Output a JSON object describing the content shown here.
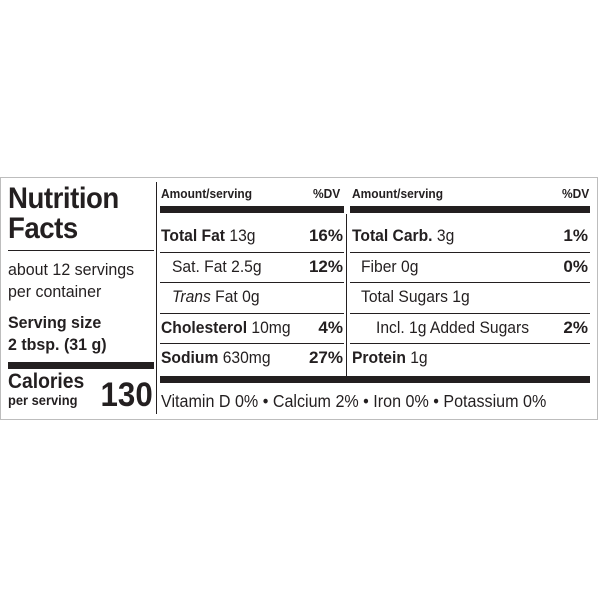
{
  "title": {
    "line1": "Nutrition",
    "line2": "Facts"
  },
  "servings": {
    "line1": "about 12 servings",
    "line2": "per container"
  },
  "serving_size": {
    "label": "Serving size",
    "value": "2 tbsp. (31 g)"
  },
  "calories": {
    "label": "Calories",
    "sublabel": "per serving",
    "value": "130"
  },
  "left_table": {
    "header_amount": "Amount/serving",
    "header_dv": "%DV",
    "rows": [
      {
        "name": "Total Fat",
        "amount": "13g",
        "dv": "16%"
      },
      {
        "name": "Sat. Fat",
        "amount": "2.5g",
        "dv": "12%"
      },
      {
        "name_italic": "Trans",
        "name": "Fat",
        "amount": "0g",
        "dv": ""
      },
      {
        "name": "Cholesterol",
        "amount": "10mg",
        "dv": "4%"
      },
      {
        "name": "Sodium",
        "amount": "630mg",
        "dv": "27%"
      }
    ]
  },
  "right_table": {
    "header_amount": "Amount/serving",
    "header_dv": "%DV",
    "rows": [
      {
        "name": "Total Carb.",
        "amount": "3g",
        "dv": "1%"
      },
      {
        "name": "Fiber",
        "amount": "0g",
        "dv": "0%"
      },
      {
        "name": "Total Sugars",
        "amount": "1g",
        "dv": ""
      },
      {
        "name": "Incl. 1g Added Sugars",
        "amount": "",
        "dv": "2%"
      },
      {
        "name": "Protein",
        "amount": "1g",
        "dv": ""
      }
    ]
  },
  "vitamins": "Vitamin D 0% • Calcium 2% • Iron 0% • Potassium 0%"
}
